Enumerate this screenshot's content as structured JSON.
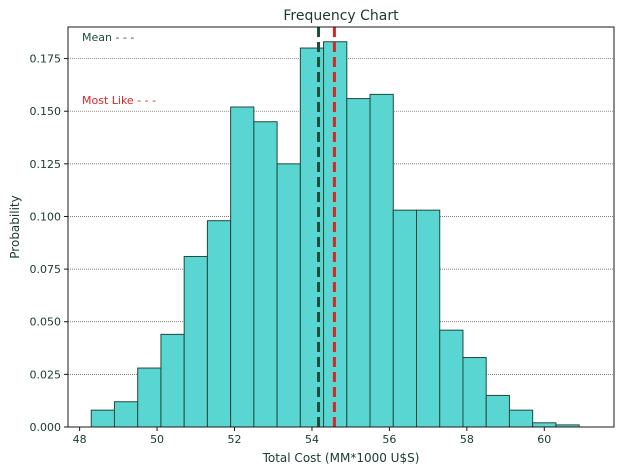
{
  "chart_data": {
    "type": "bar",
    "title": "Frequency Chart",
    "xlabel": "Total Cost (MM*1000 U$S)",
    "ylabel": "Probability",
    "xlim": [
      47.7,
      61.8
    ],
    "ylim": [
      0,
      0.19
    ],
    "xticks": [
      48,
      50,
      52,
      54,
      56,
      58,
      60
    ],
    "xtick_labels": [
      "48",
      "50",
      "52",
      "54",
      "56",
      "58",
      "60"
    ],
    "yticks": [
      0,
      0.025,
      0.05,
      0.075,
      0.1,
      0.125,
      0.15,
      0.175
    ],
    "ytick_labels": [
      "0.000",
      "0.025",
      "0.050",
      "0.075",
      "0.100",
      "0.125",
      "0.150",
      "0.175"
    ],
    "grid": "horizontal dotted",
    "bin_width": 0.6,
    "bins": [
      {
        "x0": 48.3,
        "x1": 48.9,
        "value": 0.008
      },
      {
        "x0": 48.9,
        "x1": 49.5,
        "value": 0.012
      },
      {
        "x0": 49.5,
        "x1": 50.1,
        "value": 0.028
      },
      {
        "x0": 50.1,
        "x1": 50.7,
        "value": 0.044
      },
      {
        "x0": 50.7,
        "x1": 51.3,
        "value": 0.081
      },
      {
        "x0": 51.3,
        "x1": 51.9,
        "value": 0.098
      },
      {
        "x0": 51.9,
        "x1": 52.5,
        "value": 0.152
      },
      {
        "x0": 52.5,
        "x1": 53.1,
        "value": 0.145
      },
      {
        "x0": 53.1,
        "x1": 53.7,
        "value": 0.125
      },
      {
        "x0": 53.7,
        "x1": 54.3,
        "value": 0.18
      },
      {
        "x0": 54.3,
        "x1": 54.9,
        "value": 0.183
      },
      {
        "x0": 54.9,
        "x1": 55.5,
        "value": 0.156
      },
      {
        "x0": 55.5,
        "x1": 56.1,
        "value": 0.158
      },
      {
        "x0": 56.1,
        "x1": 56.7,
        "value": 0.103
      },
      {
        "x0": 56.7,
        "x1": 57.3,
        "value": 0.103
      },
      {
        "x0": 57.3,
        "x1": 57.9,
        "value": 0.046
      },
      {
        "x0": 57.9,
        "x1": 58.5,
        "value": 0.033
      },
      {
        "x0": 58.5,
        "x1": 59.1,
        "value": 0.015
      },
      {
        "x0": 59.1,
        "x1": 59.7,
        "value": 0.008
      },
      {
        "x0": 59.7,
        "x1": 60.3,
        "value": 0.002
      },
      {
        "x0": 60.3,
        "x1": 60.9,
        "value": 0.001
      }
    ],
    "lines": [
      {
        "label": "Mean - - -",
        "x": 54.17,
        "color": "#1e4d40"
      },
      {
        "label": "Most Like - - -",
        "x": 54.58,
        "color": "#d62728"
      }
    ],
    "colors": {
      "bar_fill": "#5ad6d2",
      "bar_edge": "#1e4a3c",
      "text": "#1a3a30",
      "grid": "#555555"
    }
  }
}
